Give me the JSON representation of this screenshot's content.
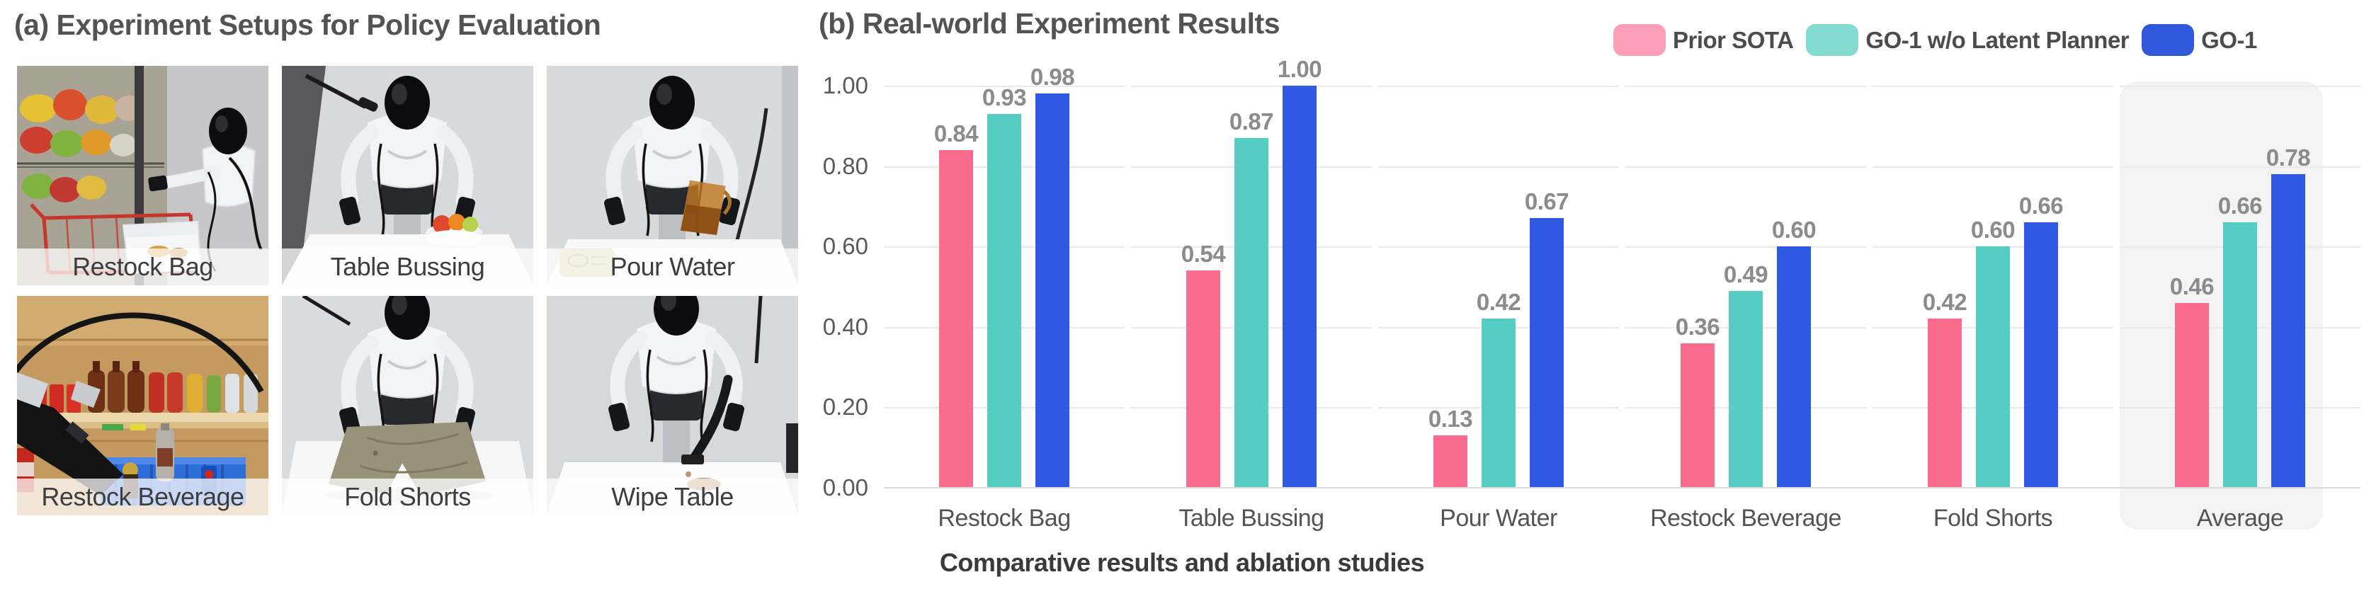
{
  "figure": {
    "caption": "Comparative results and ablation studies"
  },
  "setup": {
    "title": "(a) Experiment Setups for Policy Evaluation",
    "photos": [
      {
        "label": "Restock Bag"
      },
      {
        "label": "Table Bussing"
      },
      {
        "label": "Pour Water"
      },
      {
        "label": "Restock Beverage"
      },
      {
        "label": "Fold Shorts"
      },
      {
        "label": "Wipe Table"
      }
    ]
  },
  "chart_data": {
    "type": "bar",
    "title": "(b) Real-world Experiment Results",
    "categories": [
      "Restock Bag",
      "Table Bussing",
      "Pour Water",
      "Restock Beverage",
      "Fold Shorts",
      "Average"
    ],
    "series": [
      {
        "name": "Prior SOTA",
        "color": "#FA6B8D",
        "legend_color": "#FC9FB6",
        "values": [
          0.84,
          0.54,
          0.13,
          0.36,
          0.42,
          0.46
        ]
      },
      {
        "name": "GO-1 w/o Latent Planner",
        "color": "#55CDC3",
        "legend_color": "#83DAD3",
        "values": [
          0.93,
          0.87,
          0.42,
          0.49,
          0.6,
          0.66
        ]
      },
      {
        "name": "GO-1",
        "color": "#2F58E3",
        "legend_color": "#2F58DB",
        "values": [
          0.98,
          1.0,
          0.67,
          0.6,
          0.66,
          0.78
        ]
      }
    ],
    "ylim": [
      0,
      1.0
    ],
    "yticks": [
      "0.00",
      "0.20",
      "0.40",
      "0.60",
      "0.80",
      "1.00"
    ],
    "grid": true,
    "legend_position": "top-right",
    "highlight_category": "Average",
    "value_label_format": "2dp",
    "xlabel": "",
    "ylabel": ""
  }
}
